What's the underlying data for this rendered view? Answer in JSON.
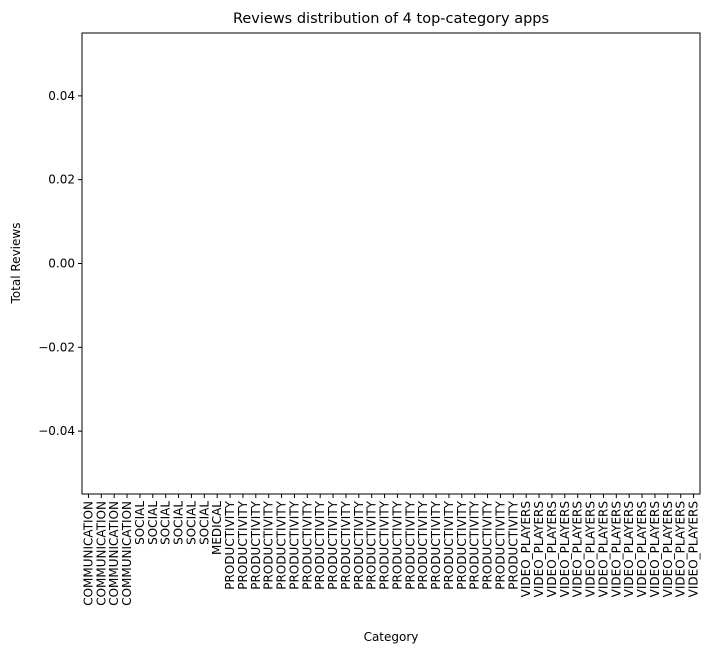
{
  "chart_data": {
    "type": "bar",
    "title": "Reviews distribution of 4 top-category apps",
    "xlabel": "Category",
    "ylabel": "Total Reviews",
    "categories": [
      "COMMUNICATION",
      "COMMUNICATION",
      "COMMUNICATION",
      "COMMUNICATION",
      "SOCIAL",
      "SOCIAL",
      "SOCIAL",
      "SOCIAL",
      "SOCIAL",
      "SOCIAL",
      "MEDICAL",
      "PRODUCTIVITY",
      "PRODUCTIVITY",
      "PRODUCTIVITY",
      "PRODUCTIVITY",
      "PRODUCTIVITY",
      "PRODUCTIVITY",
      "PRODUCTIVITY",
      "PRODUCTIVITY",
      "PRODUCTIVITY",
      "PRODUCTIVITY",
      "PRODUCTIVITY",
      "PRODUCTIVITY",
      "PRODUCTIVITY",
      "PRODUCTIVITY",
      "PRODUCTIVITY",
      "PRODUCTIVITY",
      "PRODUCTIVITY",
      "PRODUCTIVITY",
      "PRODUCTIVITY",
      "PRODUCTIVITY",
      "PRODUCTIVITY",
      "PRODUCTIVITY",
      "PRODUCTIVITY",
      "VIDEO_PLAYERS",
      "VIDEO_PLAYERS",
      "VIDEO_PLAYERS",
      "VIDEO_PLAYERS",
      "VIDEO_PLAYERS",
      "VIDEO_PLAYERS",
      "VIDEO_PLAYERS",
      "VIDEO_PLAYERS",
      "VIDEO_PLAYERS",
      "VIDEO_PLAYERS",
      "VIDEO_PLAYERS",
      "VIDEO_PLAYERS",
      "VIDEO_PLAYERS",
      "VIDEO_PLAYERS"
    ],
    "values": [
      0,
      0,
      0,
      0,
      0,
      0,
      0,
      0,
      0,
      0,
      0,
      0,
      0,
      0,
      0,
      0,
      0,
      0,
      0,
      0,
      0,
      0,
      0,
      0,
      0,
      0,
      0,
      0,
      0,
      0,
      0,
      0,
      0,
      0,
      0,
      0,
      0,
      0,
      0,
      0,
      0,
      0,
      0,
      0,
      0,
      0,
      0,
      0
    ],
    "color": "#1f77b4",
    "ylim": [
      -0.055,
      0.055
    ],
    "yticks": [
      {
        "value": -0.04,
        "label": "−0.04"
      },
      {
        "value": -0.02,
        "label": "−0.02"
      },
      {
        "value": 0,
        "label": "0.00"
      },
      0.02,
      0.04
    ],
    "grid": false
  }
}
